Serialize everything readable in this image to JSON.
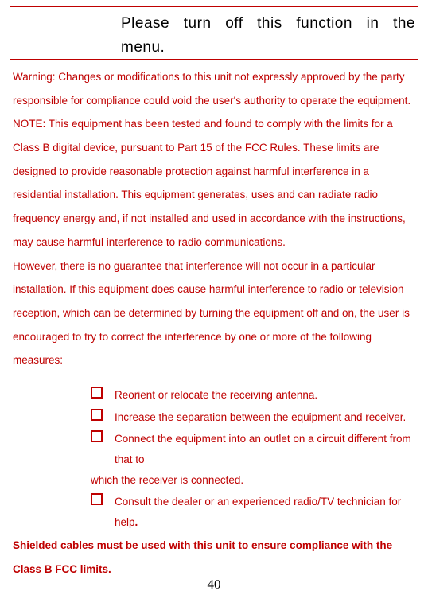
{
  "colors": {
    "rule": "#bf0000",
    "body_text": "#bf0000",
    "header_text": "#000000",
    "page_num": "#000000"
  },
  "header": {
    "line1": "Please turn off this function in the",
    "line2": "menu."
  },
  "paragraphs": {
    "p1": "Warning:   Changes or modifications to this unit not expressly approved by the party responsible for compliance could void the user's authority to operate the equipment.",
    "p2": "NOTE:   This equipment has been tested and found to comply with the limits for a Class B digital device, pursuant to Part 15 of the FCC Rules.   These limits are designed to provide reasonable protection against harmful interference in a residential installation.   This equipment generates, uses and can radiate radio frequency energy and, if not installed and used in accordance with the instructions, may cause harmful interference to radio communications.",
    "p3": "However, there is no guarantee that interference will not occur in a particular installation.   If this equipment does cause harmful interference to radio or television reception, which can be determined by turning the equipment off and on, the user is encouraged to try to correct the interference by one or more of the following measures:"
  },
  "checklist": [
    {
      "text": "Reorient or relocate the receiving antenna."
    },
    {
      "text": "Increase the separation between the equipment and receiver."
    },
    {
      "text": "Connect the equipment into an outlet on a circuit different from that to",
      "cont": "which the        receiver is connected."
    },
    {
      "text": "Consult the dealer or an experienced radio/TV technician for help",
      "trailing_bold": "."
    }
  ],
  "shielded": "Shielded cables must be used with this unit to ensure compliance with the Class B FCC limits.",
  "page_number": "40"
}
